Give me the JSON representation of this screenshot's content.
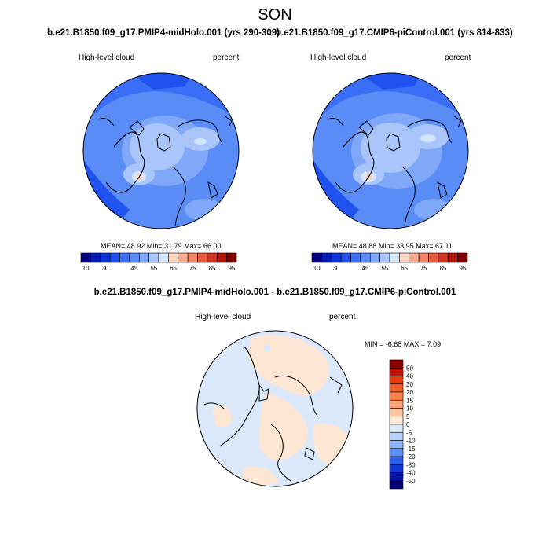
{
  "figure": {
    "season": "SON",
    "panel_a_title": "b.e21.B1850.f09_g17.PMIP4-midHolo.001 (yrs 290-309)",
    "panel_b_title": "b.e21.B1850.f09_g17.CMIP6-piControl.001 (yrs 814-833)",
    "diff_title": "b.e21.B1850.f09_g17.PMIP4-midHolo.001 - b.e21.B1850.f09_g17.CMIP6-piControl.001"
  },
  "chart_data": [
    {
      "type": "heatmap",
      "projection": "north-polar-stereographic",
      "title": "b.e21.B1850.f09_g17.PMIP4-midHolo.001 (yrs 290-309)",
      "variable": "High-level cloud",
      "units": "percent",
      "mean_label": "MEAN=",
      "mean": "48.92",
      "min_label": "Min=",
      "min": "31.79",
      "max_label": "Max=",
      "max": "66.00",
      "colorbar_levels": [
        10,
        20,
        30,
        35,
        40,
        45,
        50,
        55,
        60,
        65,
        70,
        75,
        80,
        85,
        90,
        95
      ],
      "colorbar_tick_labels": [
        "10",
        "30",
        "45",
        "55",
        "65",
        "75",
        "85",
        "95"
      ],
      "colorbar_colors": [
        "#05007f",
        "#0019b3",
        "#0a32d6",
        "#1f52ef",
        "#3a6ef7",
        "#5a8cf8",
        "#7fa8f8",
        "#a9c5fa",
        "#d3e4fc",
        "#fbd2bd",
        "#f8ab8f",
        "#f28566",
        "#e65a3e",
        "#cf3322",
        "#b01407",
        "#800000"
      ]
    },
    {
      "type": "heatmap",
      "projection": "north-polar-stereographic",
      "title": "b.e21.B1850.f09_g17.CMIP6-piControl.001 (yrs 814-833)",
      "variable": "High-level cloud",
      "units": "percent",
      "mean_label": "MEAN=",
      "mean": "48.88",
      "min_label": "Min=",
      "min": "33.95",
      "max_label": "Max=",
      "max": "67.11",
      "colorbar_levels": [
        10,
        20,
        30,
        35,
        40,
        45,
        50,
        55,
        60,
        65,
        70,
        75,
        80,
        85,
        90,
        95
      ],
      "colorbar_tick_labels": [
        "10",
        "30",
        "45",
        "55",
        "65",
        "75",
        "85",
        "95"
      ],
      "colorbar_colors": [
        "#05007f",
        "#0019b3",
        "#0a32d6",
        "#1f52ef",
        "#3a6ef7",
        "#5a8cf8",
        "#7fa8f8",
        "#a9c5fa",
        "#d3e4fc",
        "#fbd2bd",
        "#f8ab8f",
        "#f28566",
        "#e65a3e",
        "#cf3322",
        "#b01407",
        "#800000"
      ]
    },
    {
      "type": "heatmap",
      "projection": "north-polar-stereographic",
      "title": "b.e21.B1850.f09_g17.PMIP4-midHolo.001 - b.e21.B1850.f09_g17.CMIP6-piControl.001",
      "variable": "High-level cloud",
      "units": "percent",
      "min_label": "MIN =",
      "min": "-6.68",
      "max_label": "MAX =",
      "max": "7.09",
      "colorbar_levels": [
        50,
        40,
        30,
        20,
        15,
        10,
        5,
        0,
        -5,
        -10,
        -15,
        -20,
        -30,
        -40,
        -50
      ],
      "colorbar_colors": [
        "#8b0000",
        "#c41400",
        "#e83a0c",
        "#f45d28",
        "#f8804a",
        "#fba275",
        "#fbc5a4",
        "#fde6d3",
        "#dbe9fb",
        "#b6d1f9",
        "#8cb3f7",
        "#5d8ef3",
        "#2f62ea",
        "#1236d1",
        "#0515a8",
        "#020070"
      ]
    }
  ]
}
